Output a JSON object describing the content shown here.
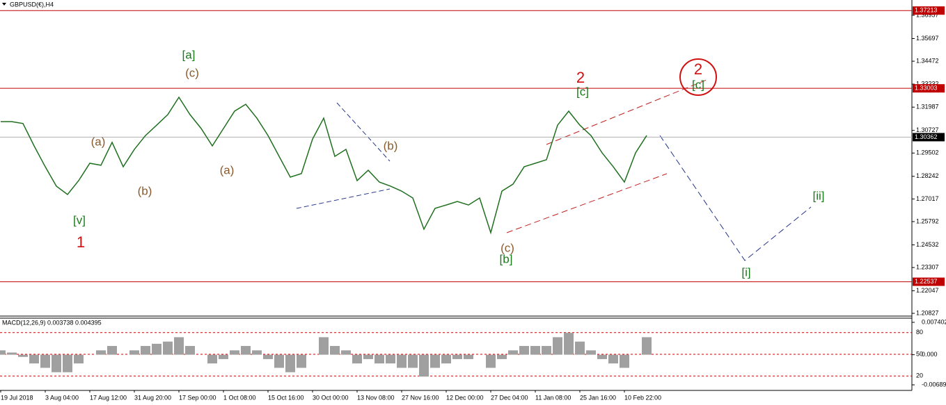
{
  "chart_data": {
    "type": "line",
    "title": "GBPUSD(€),H4",
    "categories": [
      "19 Jul 2018",
      null,
      null,
      null,
      "3 Aug 04:00",
      null,
      null,
      null,
      "17 Aug 12:00",
      null,
      null,
      null,
      "31 Aug 20:00",
      null,
      null,
      null,
      "17 Sep 00:00",
      null,
      null,
      null,
      "1 Oct 08:00",
      null,
      null,
      null,
      "15 Oct 16:00",
      null,
      null,
      null,
      "30 Oct 00:00",
      null,
      null,
      null,
      "13 Nov 08:00",
      null,
      null,
      null,
      "27 Nov 16:00",
      null,
      null,
      null,
      "12 Dec 00:00",
      null,
      null,
      null,
      "27 Dec 04:00",
      null,
      null,
      null,
      "11 Jan 08:00",
      null,
      null,
      null,
      "25 Jan 16:00",
      null,
      null,
      null,
      "10 Feb 22:00",
      null,
      null
    ],
    "series": [
      {
        "name": "GBPUSD",
        "color": "#1f6f1f",
        "values": [
          1.312,
          1.312,
          1.311,
          1.2989,
          1.2876,
          1.2771,
          1.2726,
          1.2801,
          1.2895,
          1.2884,
          1.3008,
          1.2876,
          1.297,
          1.3045,
          1.3101,
          1.3158,
          1.3252,
          1.3158,
          1.3083,
          1.2989,
          1.3083,
          1.3177,
          1.3214,
          1.3139,
          1.3045,
          1.2932,
          1.282,
          1.2839,
          1.3026,
          1.3139,
          1.2932,
          1.297,
          1.2801,
          1.2857,
          1.2793,
          1.2771,
          1.2744,
          1.2707,
          1.2538,
          1.2651,
          1.2669,
          1.2688,
          1.2669,
          1.2707,
          1.2519,
          1.2744,
          1.2782,
          1.2876,
          1.2895,
          1.2914,
          1.3101,
          1.3177,
          1.3101,
          1.3045,
          1.2951,
          1.2876,
          1.2793,
          1.2951,
          1.3045
        ]
      },
      {
        "name": "MACD(12,26,9)",
        "color": "#a0a0a0",
        "axis": "y2",
        "values": [
          0.001,
          0.0005,
          -0.0005,
          -0.002,
          -0.003,
          -0.004,
          -0.004,
          -0.002,
          0,
          0.001,
          0.002,
          0,
          0.001,
          0.002,
          0.0025,
          0.003,
          0.004,
          0.002,
          0,
          -0.002,
          -0.001,
          0.001,
          0.002,
          0.001,
          -0.001,
          -0.003,
          -0.004,
          -0.003,
          0,
          0.004,
          0.002,
          0.001,
          -0.002,
          -0.001,
          -0.002,
          -0.002,
          -0.003,
          -0.003,
          -0.005,
          -0.003,
          -0.002,
          -0.001,
          -0.001,
          0,
          -0.003,
          -0.001,
          0.001,
          0.002,
          0.002,
          0.002,
          0.004,
          0.005,
          0.003,
          0.001,
          -0.001,
          -0.002,
          -0.003,
          0,
          0.004
        ]
      }
    ],
    "macd_label": "MACD(12,26,9) 0.003738 0.004395",
    "ylim": [
      1.20679,
      1.37784
    ],
    "yticks": [
      1.36957,
      1.35697,
      1.34472,
      1.33232,
      1.31987,
      1.30727,
      1.29502,
      1.28242,
      1.27017,
      1.25792,
      1.24532,
      1.23307,
      1.22047,
      1.20827
    ],
    "levels": [
      1.37213,
      1.33003,
      1.22537
    ],
    "current_price": 1.30362,
    "y2lim": [
      -0.008161,
      0.008355
    ],
    "y2ticks": [
      0.007402,
      {
        "value": 0,
        "label": "0.000"
      },
      -0.006891
    ],
    "osc_lim": [
      0,
      100
    ],
    "osc_levels": [
      80,
      50,
      20
    ],
    "annotations": [
      "[a]",
      "(c)",
      "(a)",
      "(b)",
      "(a)",
      "[v]",
      "1",
      "(b)",
      "2",
      "[c]",
      "2",
      "[c]",
      "(c)",
      "[b]",
      "[i]",
      "[ii]"
    ]
  }
}
